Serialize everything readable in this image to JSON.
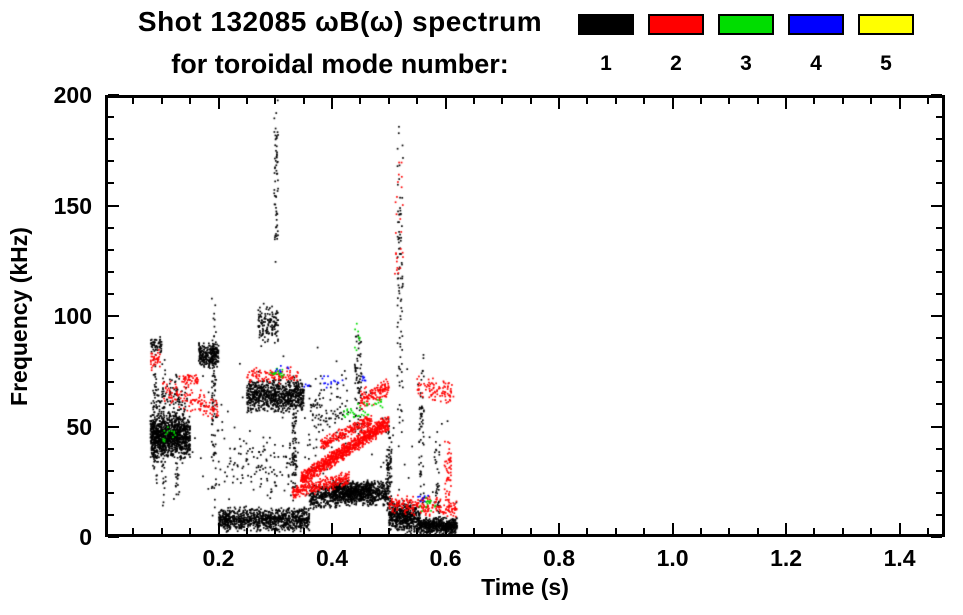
{
  "chart_data": {
    "type": "scatter",
    "title": "Shot 132085 ωB(ω) spectrum",
    "subtitle": "for toroidal mode number:",
    "xlabel": "Time (s)",
    "ylabel": "Frequency (kHz)",
    "xlim": [
      0,
      1.48
    ],
    "ylim": [
      0,
      200
    ],
    "xticks": [
      0.2,
      0.4,
      0.6,
      0.8,
      1.0,
      1.2,
      1.4
    ],
    "xtick_labels": [
      "0.2",
      "0.4",
      "0.6",
      "0.8",
      "1.0",
      "1.2",
      "1.4"
    ],
    "yticks": [
      0,
      50,
      100,
      150,
      200
    ],
    "ytick_labels": [
      "0",
      "50",
      "100",
      "150",
      "200"
    ],
    "x_minor_step": 0.05,
    "y_minor_step": 10,
    "grid": false,
    "legend_position": "top-right",
    "background": "#ffffff",
    "axis_color": "#000000",
    "seed": 42,
    "cluster_format": "[t_start_s, t_end_s, freq_center_start_kHz, freq_center_end_kHz, freq_spread_kHz, n_points]",
    "legend": [
      {
        "label": "1",
        "color": "#000000"
      },
      {
        "label": "2",
        "color": "#ff0000"
      },
      {
        "label": "3",
        "color": "#00dd00"
      },
      {
        "label": "4",
        "color": "#0000ff"
      },
      {
        "label": "5",
        "color": "#ffff00"
      }
    ],
    "series": [
      {
        "name": "1",
        "color": "#000000",
        "clusters": [
          [
            0.08,
            0.15,
            45,
            45,
            10,
            900
          ],
          [
            0.08,
            0.145,
            52,
            52,
            22,
            260
          ],
          [
            0.085,
            0.092,
            50,
            50,
            42,
            70
          ],
          [
            0.1,
            0.107,
            48,
            48,
            38,
            60
          ],
          [
            0.124,
            0.131,
            45,
            45,
            38,
            60
          ],
          [
            0.08,
            0.1,
            87,
            87,
            4,
            45
          ],
          [
            0.165,
            0.2,
            82,
            82,
            6,
            240
          ],
          [
            0.188,
            0.196,
            60,
            60,
            55,
            90
          ],
          [
            0.2,
            0.36,
            8,
            8,
            6,
            950
          ],
          [
            0.25,
            0.35,
            64,
            64,
            8,
            750
          ],
          [
            0.27,
            0.305,
            96,
            96,
            10,
            130
          ],
          [
            0.298,
            0.305,
            160,
            160,
            38,
            60
          ],
          [
            0.33,
            0.337,
            40,
            40,
            40,
            70
          ],
          [
            0.36,
            0.5,
            18,
            20,
            6,
            750
          ],
          [
            0.4,
            0.47,
            21,
            21,
            5,
            420
          ],
          [
            0.21,
            0.34,
            32,
            32,
            16,
            120
          ],
          [
            0.36,
            0.43,
            58,
            58,
            18,
            90
          ],
          [
            0.44,
            0.452,
            70,
            70,
            30,
            70
          ],
          [
            0.495,
            0.505,
            30,
            30,
            25,
            80
          ],
          [
            0.515,
            0.525,
            115,
            115,
            78,
            90
          ],
          [
            0.5,
            0.555,
            10,
            8,
            8,
            520
          ],
          [
            0.555,
            0.62,
            5,
            5,
            4,
            520
          ],
          [
            0.553,
            0.562,
            45,
            45,
            42,
            60
          ],
          [
            0.58,
            0.59,
            25,
            25,
            25,
            40
          ],
          [
            0.08,
            0.62,
            45,
            45,
            42,
            140
          ]
        ]
      },
      {
        "name": "2",
        "color": "#ff0000",
        "clusters": [
          [
            0.08,
            0.097,
            80,
            80,
            5,
            35
          ],
          [
            0.1,
            0.2,
            66,
            58,
            6,
            130
          ],
          [
            0.13,
            0.165,
            71,
            71,
            3,
            45
          ],
          [
            0.25,
            0.34,
            73,
            73,
            4,
            100
          ],
          [
            0.345,
            0.5,
            26,
            52,
            4,
            900
          ],
          [
            0.33,
            0.43,
            20,
            27,
            4,
            260
          ],
          [
            0.38,
            0.47,
            42,
            53,
            3,
            220
          ],
          [
            0.45,
            0.5,
            62,
            68,
            5,
            130
          ],
          [
            0.5,
            0.62,
            15,
            13,
            5,
            220
          ],
          [
            0.55,
            0.615,
            68,
            66,
            6,
            90
          ],
          [
            0.598,
            0.61,
            30,
            30,
            14,
            50
          ],
          [
            0.51,
            0.525,
            150,
            150,
            40,
            25
          ]
        ]
      },
      {
        "name": "3",
        "color": "#00dd00",
        "clusters": [
          [
            0.29,
            0.315,
            74,
            74,
            3,
            18
          ],
          [
            0.42,
            0.465,
            55,
            58,
            4,
            28
          ],
          [
            0.55,
            0.585,
            15,
            15,
            5,
            16
          ],
          [
            0.1,
            0.125,
            46,
            46,
            8,
            14
          ],
          [
            0.47,
            0.49,
            61,
            61,
            3,
            10
          ],
          [
            0.44,
            0.45,
            90,
            90,
            15,
            8
          ]
        ]
      },
      {
        "name": "4",
        "color": "#0000ff",
        "clusters": [
          [
            0.38,
            0.42,
            70,
            70,
            3,
            14
          ],
          [
            0.3,
            0.325,
            76,
            76,
            2,
            8
          ],
          [
            0.55,
            0.57,
            18,
            18,
            3,
            8
          ],
          [
            0.45,
            0.462,
            72,
            72,
            2,
            6
          ],
          [
            0.35,
            0.36,
            68,
            68,
            2,
            5
          ]
        ]
      },
      {
        "name": "5",
        "color": "#ffff00",
        "clusters": []
      }
    ]
  }
}
